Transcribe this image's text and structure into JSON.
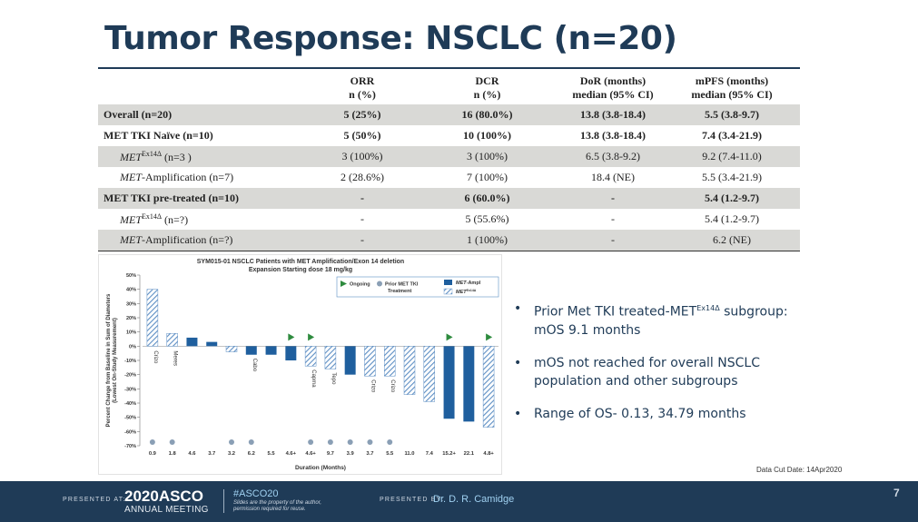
{
  "title": "Tumor Response: NSCLC (n=20)",
  "table": {
    "headers": [
      [
        "",
        ""
      ],
      [
        "ORR",
        "n (%)"
      ],
      [
        "DCR",
        "n (%)"
      ],
      [
        "DoR (months)",
        "median (95% CI)"
      ],
      [
        "mPFS (months)",
        "median (95% CI)"
      ]
    ],
    "rows": [
      {
        "label": "Overall (n=20)",
        "orr": "5 (25%)",
        "dcr": "16 (80.0%)",
        "dor": "13.8 (3.8-18.4)",
        "mpfs": "5.5 (3.8-9.7)"
      },
      {
        "label": "MET TKI Naïve (n=10)",
        "orr": "5 (50%)",
        "dcr": "10 (100%)",
        "dor": "13.8 (3.8-18.4)",
        "mpfs": "7.4 (3.4-21.9)"
      },
      {
        "label_italic": "MET",
        "label_sup": "Ex14Δ",
        "label_rest": " (n=3 )",
        "orr": "3 (100%)",
        "dcr": "3 (100%)",
        "dor": "6.5 (3.8-9.2)",
        "mpfs": "9.2 (7.4-11.0)"
      },
      {
        "label_italic": "MET",
        "label_rest": "-Amplification (n=7)",
        "orr": "2 (28.6%)",
        "dcr": "7 (100%)",
        "dor": "18.4 (NE)",
        "mpfs": "5.5 (3.4-21.9)"
      },
      {
        "label": "MET TKI pre-treated (n=10)",
        "orr": "-",
        "dcr": "6 (60.0%)",
        "dor": "-",
        "mpfs": "5.4 (1.2-9.7)"
      },
      {
        "label_italic": "MET",
        "label_sup": "Ex14Δ",
        "label_rest": " (n=?)",
        "orr": "-",
        "dcr": "5 (55.6%)",
        "dor": "-",
        "mpfs": "5.4 (1.2-9.7)"
      },
      {
        "label_italic": "MET",
        "label_rest": "-Amplification (n=?)",
        "orr": "-",
        "dcr": "1 (100%)",
        "dor": "-",
        "mpfs": "6.2 (NE)"
      }
    ]
  },
  "chart_data": {
    "type": "bar",
    "title": "SYM015-01 NSCLC Patients with MET Amplification/Exon 14 deletion",
    "subtitle": "Expansion Starting dose 18 mg/kg",
    "xlabel": "Duration (Months)",
    "ylabel_line1": "Percent Change from Baseline in Sum of Diameters",
    "ylabel_line2": "(Lowest On-Study Measurement)",
    "ylim": [
      -70,
      50
    ],
    "yticks": [
      "50%",
      "40%",
      "30%",
      "20%",
      "10%",
      "0%",
      "-10%",
      "-20%",
      "-30%",
      "-40%",
      "-50%",
      "-60%",
      "-70%"
    ],
    "categories": [
      "0.9",
      "1.8",
      "4.6",
      "3.7",
      "3.2",
      "6.2",
      "5.5",
      "4.6+",
      "4.6+",
      "9.7",
      "3.9",
      "3.7",
      "5.5",
      "11.0",
      "7.4",
      "15.2+",
      "22.1",
      "4.8+"
    ],
    "values": [
      40,
      9,
      6,
      3,
      -4,
      -6,
      -6,
      -10,
      -14,
      -16,
      -20,
      -21,
      -21,
      -34,
      -39,
      -51,
      -53,
      -57
    ],
    "bar_type": [
      "exon14",
      "exon14",
      "ampl",
      "ampl",
      "exon14",
      "ampl",
      "ampl",
      "ampl",
      "exon14",
      "exon14",
      "ampl",
      "exon14",
      "exon14",
      "exon14",
      "exon14",
      "ampl",
      "ampl",
      "exon14"
    ],
    "ongoing": [
      false,
      false,
      false,
      false,
      false,
      false,
      false,
      true,
      true,
      false,
      false,
      false,
      false,
      false,
      false,
      true,
      false,
      true
    ],
    "prior_tki": [
      true,
      true,
      false,
      false,
      true,
      true,
      false,
      false,
      true,
      true,
      true,
      true,
      true,
      false,
      false,
      false,
      false,
      false
    ],
    "annotations": [
      {
        "index": 0,
        "text": "Crizo"
      },
      {
        "index": 1,
        "text": "Meres"
      },
      {
        "index": 5,
        "text": "Cabo"
      },
      {
        "index": 8,
        "text": "Capma"
      },
      {
        "index": 9,
        "text": "Tepo"
      },
      {
        "index": 11,
        "text": "Crizo"
      },
      {
        "index": 12,
        "text": "Crizo"
      }
    ],
    "legend": {
      "ongoing": "Ongoing",
      "prior_line1": "Prior MET TKI",
      "prior_line2": "Treatment",
      "ampl_italic": "MET",
      "ampl_rest": "-Ampl",
      "exon_italic": "MET",
      "exon_sup": "Ex14Δ"
    },
    "colors": {
      "ampl": "#1f5f9e",
      "exon14": "#5e8fc4",
      "ongoing": "#2e8b3e",
      "prior": "#8a9fb5"
    }
  },
  "bullets": [
    {
      "main": "Prior Met TKI treated-MET",
      "sup": "Ex14Δ",
      "rest": " subgroup: mOS 9.1 months"
    },
    {
      "main": "mOS not reached for overall NSCLC population and other subgroups",
      "sup": "",
      "rest": ""
    },
    {
      "main": "Range of OS- 0.13, 34.79  months",
      "sup": "",
      "rest": ""
    }
  ],
  "data_cut": "Data Cut Date: 14Apr2020",
  "footer": {
    "presented_at": "PRESENTED AT:",
    "asco": "2020ASCO",
    "asco_sub": "ANNUAL MEETING",
    "hashtag": "#ASCO20",
    "note": "Slides are the property of the author, permission required for reuse.",
    "presented_by": "PRESENTED BY:",
    "presenter": "Dr. D. R. Camidge",
    "page": "7"
  }
}
